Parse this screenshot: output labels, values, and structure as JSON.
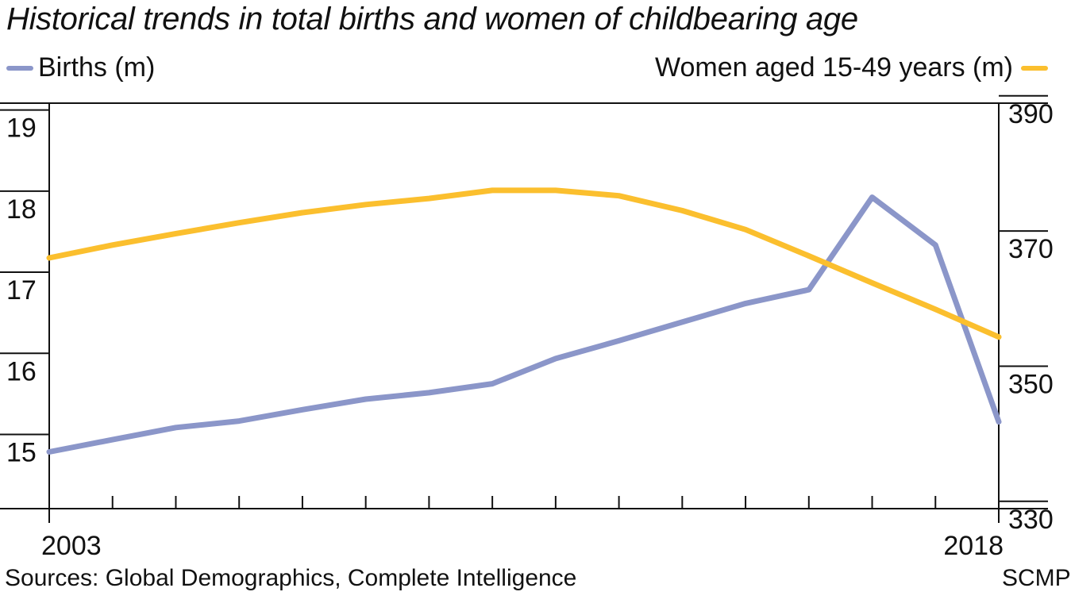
{
  "chart_data": {
    "type": "line",
    "title": "Historical trends in total births and women of childbearing age",
    "x": [
      2003,
      2004,
      2005,
      2006,
      2007,
      2008,
      2009,
      2010,
      2011,
      2012,
      2013,
      2014,
      2015,
      2016,
      2017,
      2018
    ],
    "x_tick_labels": [
      "2003",
      "2018"
    ],
    "series": [
      {
        "name": "Births (m)",
        "axis": "left",
        "color": "#8b96c9",
        "values": [
          15.0,
          15.15,
          15.3,
          15.38,
          15.52,
          15.65,
          15.73,
          15.84,
          16.15,
          16.37,
          16.6,
          16.83,
          17.0,
          18.14,
          17.55,
          15.37
        ]
      },
      {
        "name": "Women aged 15-49 years (m)",
        "axis": "right",
        "color": "#fbbf2e",
        "values": [
          368.6,
          370.5,
          372.2,
          373.8,
          375.3,
          376.5,
          377.4,
          378.6,
          378.6,
          377.8,
          375.6,
          372.8,
          368.9,
          364.9,
          361.0,
          356.9
        ]
      }
    ],
    "y_left": {
      "ticks": [
        15,
        16,
        17,
        18,
        19
      ],
      "range": [
        14.3,
        19.3
      ]
    },
    "y_right": {
      "ticks": [
        330,
        350,
        370,
        390
      ],
      "range": [
        331.5,
        391.5
      ]
    },
    "grid": false,
    "legend": "top"
  },
  "legend_left_label": "Births (m)",
  "legend_right_label": "Women aged 15-49 years (m)",
  "source_text": "Sources: Global Demographics, Complete Intelligence",
  "credit_text": "SCMP"
}
